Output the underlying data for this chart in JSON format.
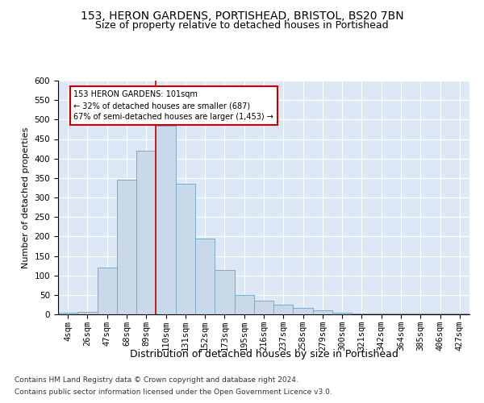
{
  "title1": "153, HERON GARDENS, PORTISHEAD, BRISTOL, BS20 7BN",
  "title2": "Size of property relative to detached houses in Portishead",
  "xlabel": "Distribution of detached houses by size in Portishead",
  "ylabel": "Number of detached properties",
  "footnote1": "Contains HM Land Registry data © Crown copyright and database right 2024.",
  "footnote2": "Contains public sector information licensed under the Open Government Licence v3.0.",
  "bar_labels": [
    "4sqm",
    "26sqm",
    "47sqm",
    "68sqm",
    "89sqm",
    "110sqm",
    "131sqm",
    "152sqm",
    "173sqm",
    "195sqm",
    "216sqm",
    "237sqm",
    "258sqm",
    "279sqm",
    "300sqm",
    "321sqm",
    "342sqm",
    "364sqm",
    "385sqm",
    "406sqm",
    "427sqm"
  ],
  "bar_values": [
    4,
    7,
    120,
    345,
    420,
    485,
    335,
    195,
    113,
    50,
    35,
    25,
    17,
    10,
    5,
    2,
    2,
    2,
    2,
    2,
    2
  ],
  "bar_color": "#c9d9ea",
  "bar_edge_color": "#7aaac8",
  "property_line_x": 4.5,
  "property_line_color": "#cc0000",
  "annotation_line1": "153 HERON GARDENS: 101sqm",
  "annotation_line2": "← 32% of detached houses are smaller (687)",
  "annotation_line3": "67% of semi-detached houses are larger (1,453) →",
  "annotation_box_color": "#cc0000",
  "ylim": [
    0,
    600
  ],
  "yticks": [
    0,
    50,
    100,
    150,
    200,
    250,
    300,
    350,
    400,
    450,
    500,
    550,
    600
  ],
  "bg_color": "#dce8f5",
  "title1_fontsize": 10,
  "title2_fontsize": 9,
  "xlabel_fontsize": 9,
  "ylabel_fontsize": 8,
  "tick_fontsize": 7.5,
  "footnote_fontsize": 6.5
}
